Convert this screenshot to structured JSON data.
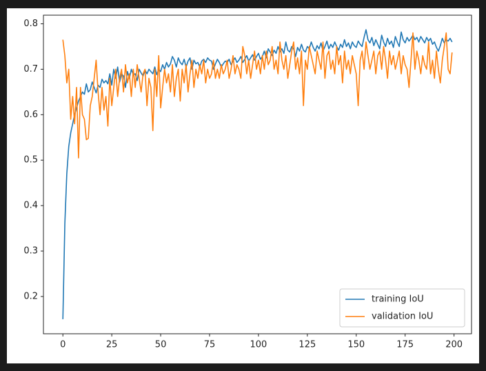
{
  "chart_data": {
    "type": "line",
    "x": [
      0,
      1,
      2,
      3,
      4,
      5,
      6,
      7,
      8,
      9,
      10,
      11,
      12,
      13,
      14,
      15,
      16,
      17,
      18,
      19,
      20,
      21,
      22,
      23,
      24,
      25,
      26,
      27,
      28,
      29,
      30,
      31,
      32,
      33,
      34,
      35,
      36,
      37,
      38,
      39,
      40,
      41,
      42,
      43,
      44,
      45,
      46,
      47,
      48,
      49,
      50,
      51,
      52,
      53,
      54,
      55,
      56,
      57,
      58,
      59,
      60,
      61,
      62,
      63,
      64,
      65,
      66,
      67,
      68,
      69,
      70,
      71,
      72,
      73,
      74,
      75,
      76,
      77,
      78,
      79,
      80,
      81,
      82,
      83,
      84,
      85,
      86,
      87,
      88,
      89,
      90,
      91,
      92,
      93,
      94,
      95,
      96,
      97,
      98,
      99,
      100,
      101,
      102,
      103,
      104,
      105,
      106,
      107,
      108,
      109,
      110,
      111,
      112,
      113,
      114,
      115,
      116,
      117,
      118,
      119,
      120,
      121,
      122,
      123,
      124,
      125,
      126,
      127,
      128,
      129,
      130,
      131,
      132,
      133,
      134,
      135,
      136,
      137,
      138,
      139,
      140,
      141,
      142,
      143,
      144,
      145,
      146,
      147,
      148,
      149,
      150,
      151,
      152,
      153,
      154,
      155,
      156,
      157,
      158,
      159,
      160,
      161,
      162,
      163,
      164,
      165,
      166,
      167,
      168,
      169,
      170,
      171,
      172,
      173,
      174,
      175,
      176,
      177,
      178,
      179,
      180,
      181,
      182,
      183,
      184,
      185,
      186,
      187,
      188,
      189,
      190,
      191,
      192,
      193,
      194,
      195,
      196,
      197,
      198,
      199
    ],
    "series": [
      {
        "name": "training IoU",
        "color": "#1f77b4",
        "values": [
          0.15,
          0.36,
          0.47,
          0.53,
          0.56,
          0.58,
          0.6,
          0.615,
          0.63,
          0.64,
          0.65,
          0.645,
          0.668,
          0.65,
          0.655,
          0.672,
          0.66,
          0.648,
          0.665,
          0.66,
          0.678,
          0.67,
          0.675,
          0.668,
          0.69,
          0.665,
          0.7,
          0.68,
          0.705,
          0.672,
          0.69,
          0.685,
          0.66,
          0.695,
          0.68,
          0.7,
          0.688,
          0.69,
          0.675,
          0.7,
          0.692,
          0.685,
          0.698,
          0.69,
          0.7,
          0.695,
          0.69,
          0.705,
          0.688,
          0.7,
          0.695,
          0.71,
          0.7,
          0.715,
          0.705,
          0.712,
          0.728,
          0.72,
          0.705,
          0.725,
          0.715,
          0.71,
          0.722,
          0.705,
          0.718,
          0.725,
          0.7,
          0.72,
          0.712,
          0.715,
          0.705,
          0.718,
          0.722,
          0.715,
          0.725,
          0.72,
          0.718,
          0.7,
          0.712,
          0.722,
          0.715,
          0.705,
          0.712,
          0.718,
          0.715,
          0.722,
          0.71,
          0.718,
          0.725,
          0.715,
          0.72,
          0.728,
          0.715,
          0.722,
          0.73,
          0.718,
          0.725,
          0.732,
          0.72,
          0.728,
          0.735,
          0.722,
          0.728,
          0.74,
          0.725,
          0.745,
          0.738,
          0.73,
          0.742,
          0.735,
          0.75,
          0.738,
          0.745,
          0.735,
          0.76,
          0.742,
          0.738,
          0.75,
          0.745,
          0.728,
          0.748,
          0.74,
          0.755,
          0.742,
          0.738,
          0.75,
          0.745,
          0.76,
          0.748,
          0.74,
          0.752,
          0.745,
          0.758,
          0.74,
          0.75,
          0.762,
          0.745,
          0.755,
          0.748,
          0.76,
          0.75,
          0.742,
          0.755,
          0.748,
          0.765,
          0.75,
          0.758,
          0.745,
          0.76,
          0.752,
          0.748,
          0.762,
          0.755,
          0.75,
          0.77,
          0.787,
          0.765,
          0.758,
          0.77,
          0.752,
          0.765,
          0.755,
          0.745,
          0.775,
          0.76,
          0.75,
          0.768,
          0.755,
          0.762,
          0.748,
          0.772,
          0.76,
          0.75,
          0.782,
          0.765,
          0.758,
          0.77,
          0.762,
          0.768,
          0.775,
          0.765,
          0.77,
          0.76,
          0.772,
          0.765,
          0.758,
          0.77,
          0.762,
          0.768,
          0.755,
          0.76,
          0.748,
          0.74,
          0.752,
          0.768,
          0.758,
          0.765,
          0.762,
          0.768,
          0.76
        ]
      },
      {
        "name": "validation IoU",
        "color": "#ff7f0e",
        "values": [
          0.765,
          0.73,
          0.67,
          0.7,
          0.59,
          0.64,
          0.58,
          0.66,
          0.505,
          0.66,
          0.6,
          0.59,
          0.545,
          0.548,
          0.62,
          0.64,
          0.68,
          0.72,
          0.65,
          0.6,
          0.66,
          0.61,
          0.64,
          0.575,
          0.68,
          0.62,
          0.66,
          0.7,
          0.64,
          0.68,
          0.7,
          0.65,
          0.71,
          0.67,
          0.69,
          0.64,
          0.7,
          0.66,
          0.71,
          0.68,
          0.65,
          0.69,
          0.7,
          0.62,
          0.68,
          0.66,
          0.565,
          0.7,
          0.64,
          0.73,
          0.615,
          0.66,
          0.7,
          0.67,
          0.69,
          0.65,
          0.71,
          0.64,
          0.68,
          0.7,
          0.63,
          0.7,
          0.67,
          0.71,
          0.65,
          0.69,
          0.72,
          0.66,
          0.7,
          0.68,
          0.71,
          0.69,
          0.72,
          0.67,
          0.7,
          0.68,
          0.69,
          0.72,
          0.68,
          0.7,
          0.68,
          0.71,
          0.69,
          0.7,
          0.72,
          0.68,
          0.7,
          0.73,
          0.69,
          0.71,
          0.7,
          0.68,
          0.75,
          0.73,
          0.69,
          0.72,
          0.68,
          0.71,
          0.74,
          0.7,
          0.72,
          0.69,
          0.73,
          0.7,
          0.74,
          0.71,
          0.72,
          0.75,
          0.7,
          0.72,
          0.69,
          0.76,
          0.72,
          0.7,
          0.73,
          0.68,
          0.71,
          0.74,
          0.76,
          0.7,
          0.725,
          0.69,
          0.74,
          0.62,
          0.72,
          0.7,
          0.75,
          0.73,
          0.71,
          0.69,
          0.74,
          0.72,
          0.7,
          0.76,
          0.68,
          0.73,
          0.74,
          0.7,
          0.72,
          0.69,
          0.75,
          0.71,
          0.73,
          0.67,
          0.74,
          0.7,
          0.72,
          0.69,
          0.73,
          0.71,
          0.69,
          0.62,
          0.72,
          0.74,
          0.7,
          0.76,
          0.73,
          0.7,
          0.72,
          0.74,
          0.69,
          0.73,
          0.74,
          0.7,
          0.75,
          0.72,
          0.68,
          0.74,
          0.71,
          0.73,
          0.7,
          0.72,
          0.74,
          0.69,
          0.73,
          0.71,
          0.7,
          0.66,
          0.72,
          0.78,
          0.7,
          0.74,
          0.72,
          0.69,
          0.73,
          0.71,
          0.7,
          0.76,
          0.69,
          0.72,
          0.68,
          0.74,
          0.7,
          0.67,
          0.72,
          0.75,
          0.78,
          0.7,
          0.69,
          0.737
        ]
      }
    ],
    "xlim": [
      -9.95,
      208.95
    ],
    "xticks": [
      0,
      25,
      50,
      75,
      100,
      125,
      150,
      175,
      200
    ],
    "ylim": [
      0.118,
      0.819
    ],
    "yticks": [
      0.2,
      0.3,
      0.4,
      0.5,
      0.6,
      0.7,
      0.8
    ],
    "grid": false,
    "legend": "lower right"
  }
}
